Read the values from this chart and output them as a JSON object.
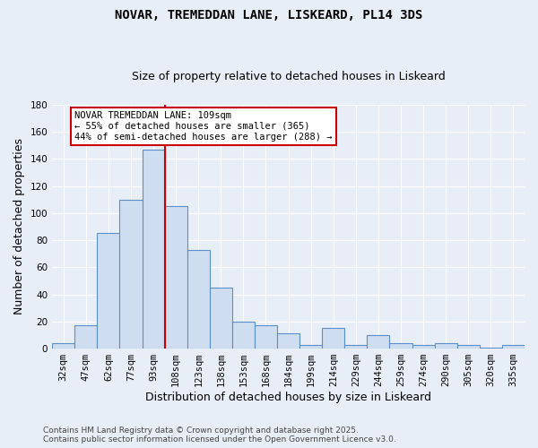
{
  "title": "NOVAR, TREMEDDAN LANE, LISKEARD, PL14 3DS",
  "subtitle": "Size of property relative to detached houses in Liskeard",
  "xlabel": "Distribution of detached houses by size in Liskeard",
  "ylabel": "Number of detached properties",
  "categories": [
    "32sqm",
    "47sqm",
    "62sqm",
    "77sqm",
    "93sqm",
    "108sqm",
    "123sqm",
    "138sqm",
    "153sqm",
    "168sqm",
    "184sqm",
    "199sqm",
    "214sqm",
    "229sqm",
    "244sqm",
    "259sqm",
    "274sqm",
    "290sqm",
    "305sqm",
    "320sqm",
    "335sqm"
  ],
  "values": [
    4,
    17,
    85,
    110,
    147,
    105,
    73,
    45,
    20,
    17,
    11,
    3,
    15,
    3,
    10,
    4,
    3,
    4,
    3,
    1,
    3
  ],
  "bar_color": "#cfddf0",
  "bar_edge_color": "#5b8fc9",
  "bar_edge_width": 0.8,
  "red_line_x": 5.0,
  "red_line_color": "#cc0000",
  "annotation_text": "NOVAR TREMEDDAN LANE: 109sqm\n← 55% of detached houses are smaller (365)\n44% of semi-detached houses are larger (288) →",
  "annotation_box_color": "#ffffff",
  "annotation_box_edge_color": "#cc0000",
  "ylim": [
    0,
    180
  ],
  "yticks": [
    0,
    20,
    40,
    60,
    80,
    100,
    120,
    140,
    160,
    180
  ],
  "footnote": "Contains HM Land Registry data © Crown copyright and database right 2025.\nContains public sector information licensed under the Open Government Licence v3.0.",
  "background_color": "#e8eef7",
  "grid_color": "#ffffff",
  "title_fontsize": 10,
  "subtitle_fontsize": 9,
  "axis_label_fontsize": 9,
  "tick_fontsize": 7.5,
  "annotation_fontsize": 7.5,
  "footnote_fontsize": 6.5
}
